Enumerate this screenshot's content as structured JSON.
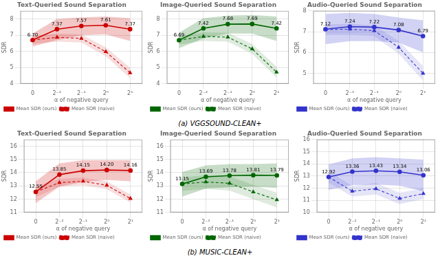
{
  "captions": [
    "(a) VGGSOUND-CLEAN+",
    "(b) MUSIC-CLEAN+"
  ],
  "chart_data": [
    {
      "type": "line",
      "title": "Text-Queried Sound Separation",
      "x_label": "α of negative query",
      "y_label": "SDR",
      "categories": [
        "0",
        "2⁻²",
        "2⁻¹",
        "2⁰",
        "2¹"
      ],
      "series": [
        {
          "name": "Mean SDR (naive)",
          "color": "#cc0000",
          "marker": "triangle",
          "line_style": "dashed",
          "values": [
            6.7,
            6.87,
            6.8,
            5.98,
            4.68
          ],
          "upper": [
            6.95,
            7.1,
            7.05,
            6.25,
            5.0
          ],
          "lower": [
            6.45,
            6.6,
            6.55,
            5.7,
            4.35
          ]
        },
        {
          "name": "Mean SDR (ours)",
          "color": "#cc0000",
          "marker": "circle",
          "line_style": "solid",
          "values": [
            6.7,
            7.37,
            7.57,
            7.61,
            7.37
          ],
          "value_labels": [
            "6.70",
            "7.37",
            "7.57",
            "7.61",
            "7.37"
          ],
          "upper": [
            7.1,
            8.0,
            8.1,
            8.15,
            8.05
          ],
          "lower": [
            6.3,
            6.7,
            7.0,
            7.05,
            6.65
          ]
        }
      ],
      "ylim": [
        4.0,
        8.5
      ],
      "yticks": [
        4,
        5,
        6,
        7,
        8
      ],
      "grid": true,
      "legend": "lower left",
      "data_labels": true
    },
    {
      "type": "line",
      "title": "Image-Queried Sound Separation",
      "x_label": "α of negative query",
      "y_label": "SDR",
      "categories": [
        "0",
        "2⁻²",
        "2⁻¹",
        "2⁰",
        "2¹"
      ],
      "series": [
        {
          "name": "Mean SDR (naive)",
          "color": "#006600",
          "marker": "triangle",
          "line_style": "dashed",
          "values": [
            6.69,
            6.92,
            6.88,
            6.15,
            4.72
          ],
          "upper": [
            6.95,
            7.18,
            7.15,
            6.45,
            5.05
          ],
          "lower": [
            6.42,
            6.65,
            6.6,
            5.85,
            4.38
          ]
        },
        {
          "name": "Mean SDR (ours)",
          "color": "#006600",
          "marker": "circle",
          "line_style": "solid",
          "values": [
            6.69,
            7.42,
            7.68,
            7.69,
            7.42
          ],
          "value_labels": [
            "6.69",
            "7.42",
            "7.68",
            "7.69",
            "7.42"
          ],
          "upper": [
            7.15,
            8.05,
            8.2,
            8.25,
            8.15
          ],
          "lower": [
            6.2,
            6.8,
            7.1,
            7.1,
            6.65
          ]
        }
      ],
      "ylim": [
        4.0,
        8.5
      ],
      "yticks": [
        4,
        5,
        6,
        7,
        8
      ],
      "grid": true,
      "legend": "lower left",
      "data_labels": true
    },
    {
      "type": "line",
      "title": "Audio-Queried Sound Separation",
      "x_label": "α of negative query",
      "y_label": "SDR",
      "categories": [
        "0",
        "2⁻²",
        "2⁻¹",
        "2⁰",
        "2¹"
      ],
      "series": [
        {
          "name": "Mean SDR (naive)",
          "color": "#3333cc",
          "marker": "triangle",
          "line_style": "dashed",
          "values": [
            7.1,
            7.12,
            7.05,
            6.25,
            5.0
          ],
          "upper": [
            7.35,
            7.38,
            7.3,
            6.55,
            5.35
          ],
          "lower": [
            6.85,
            6.85,
            6.8,
            5.95,
            4.65
          ]
        },
        {
          "name": "Mean SDR (ours)",
          "color": "#3333cc",
          "marker": "circle",
          "line_style": "solid",
          "values": [
            7.12,
            7.24,
            7.22,
            7.08,
            6.79
          ],
          "value_labels": [
            "7.12",
            "7.24",
            "7.22",
            "7.08",
            "6.79"
          ],
          "upper": [
            7.85,
            7.9,
            7.85,
            7.68,
            7.55
          ],
          "lower": [
            6.4,
            6.55,
            6.55,
            6.48,
            6.0
          ]
        }
      ],
      "ylim": [
        4.5,
        8.0
      ],
      "yticks": [
        5,
        6,
        7,
        8
      ],
      "grid": true,
      "legend": "lower left",
      "data_labels": true
    },
    {
      "type": "line",
      "title": "Text-Queried Sound Separation",
      "x_label": "α of negative query",
      "y_label": "SDR",
      "categories": [
        "0",
        "2⁻²",
        "2⁻¹",
        "2⁰",
        "2¹"
      ],
      "series": [
        {
          "name": "Mean SDR (naive)",
          "color": "#cc0000",
          "marker": "triangle",
          "line_style": "dashed",
          "values": [
            12.55,
            13.25,
            13.35,
            13.05,
            12.05
          ],
          "upper": [
            12.95,
            13.55,
            13.62,
            13.35,
            12.35
          ],
          "lower": [
            12.15,
            12.95,
            13.05,
            12.75,
            11.75
          ]
        },
        {
          "name": "Mean SDR (ours)",
          "color": "#cc0000",
          "marker": "circle",
          "line_style": "solid",
          "values": [
            12.55,
            13.85,
            14.15,
            14.2,
            14.16
          ],
          "value_labels": [
            "12.55",
            "13.85",
            "14.15",
            "14.20",
            "14.16"
          ],
          "upper": [
            13.35,
            14.7,
            14.95,
            14.95,
            14.95
          ],
          "lower": [
            11.7,
            12.95,
            13.3,
            13.45,
            13.35
          ]
        }
      ],
      "ylim": [
        11.0,
        16.5
      ],
      "yticks": [
        11,
        12,
        13,
        14,
        15,
        16
      ],
      "grid": true,
      "legend": "lower left",
      "data_labels": true
    },
    {
      "type": "line",
      "title": "Image-Queried Sound Separation",
      "x_label": "α of negative query",
      "y_label": "SDR",
      "categories": [
        "0",
        "2⁻²",
        "2⁻¹",
        "2⁰",
        "2¹"
      ],
      "series": [
        {
          "name": "Mean SDR (naive)",
          "color": "#006600",
          "marker": "triangle",
          "line_style": "dashed",
          "values": [
            13.15,
            13.3,
            13.2,
            12.55,
            11.95
          ],
          "upper": [
            13.65,
            13.8,
            13.72,
            13.08,
            12.5
          ],
          "lower": [
            12.62,
            12.78,
            12.65,
            12.0,
            11.38
          ]
        },
        {
          "name": "Mean SDR (ours)",
          "color": "#006600",
          "marker": "circle",
          "line_style": "solid",
          "values": [
            13.15,
            13.69,
            13.78,
            13.81,
            13.79
          ],
          "value_labels": [
            "13.15",
            "13.69",
            "13.78",
            "13.81",
            "13.79"
          ],
          "upper": [
            14.05,
            14.55,
            14.65,
            14.65,
            14.7
          ],
          "lower": [
            12.2,
            12.8,
            12.9,
            12.95,
            12.85
          ]
        }
      ],
      "ylim": [
        11.0,
        16.5
      ],
      "yticks": [
        11,
        12,
        13,
        14,
        15,
        16
      ],
      "grid": true,
      "legend": "lower left",
      "data_labels": true
    },
    {
      "type": "line",
      "title": "Audio-Queried Sound Separation",
      "x_label": "α of negative query",
      "y_label": "SDR",
      "categories": [
        "0",
        "2⁻²",
        "2⁻¹",
        "2⁰",
        "2¹"
      ],
      "series": [
        {
          "name": "Mean SDR (naive)",
          "color": "#3333cc",
          "marker": "triangle",
          "line_style": "dashed",
          "values": [
            12.92,
            11.75,
            11.95,
            11.15,
            11.55
          ],
          "upper": [
            13.38,
            12.18,
            12.42,
            11.62,
            12.0
          ],
          "lower": [
            12.45,
            11.3,
            11.48,
            10.68,
            11.1
          ]
        },
        {
          "name": "Mean SDR (ours)",
          "color": "#3333cc",
          "marker": "circle",
          "line_style": "solid",
          "values": [
            12.92,
            13.36,
            13.43,
            13.34,
            13.06
          ],
          "value_labels": [
            "12.92",
            "13.36",
            "13.43",
            "13.34",
            "13.06"
          ],
          "upper": [
            13.95,
            14.45,
            14.55,
            14.45,
            14.35
          ],
          "lower": [
            11.85,
            12.25,
            12.3,
            12.2,
            11.75
          ]
        }
      ],
      "ylim": [
        10.0,
        16.0
      ],
      "yticks": [
        10,
        11,
        12,
        13,
        14,
        15,
        16
      ],
      "grid": true,
      "legend": "lower left",
      "data_labels": true
    }
  ]
}
